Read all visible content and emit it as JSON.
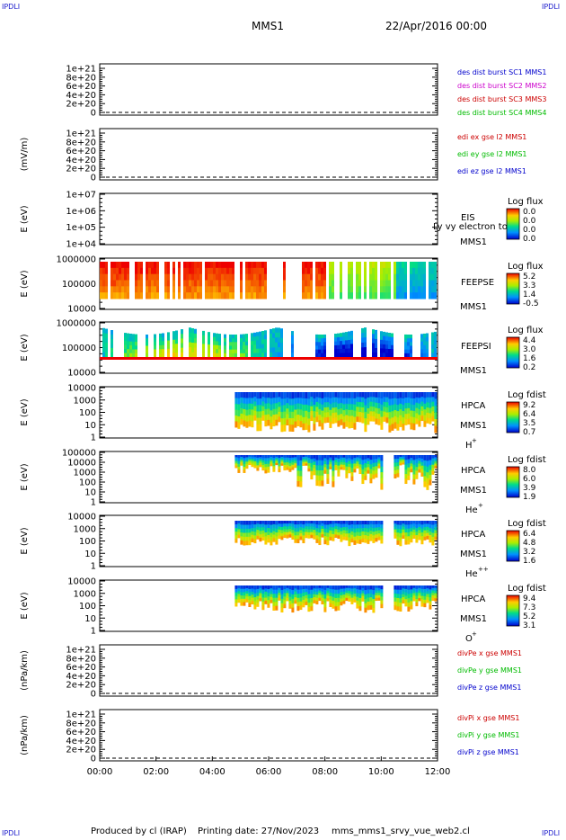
{
  "header": {
    "corner_left_top": "IPDLI",
    "corner_right_top": "IPDLI",
    "corner_left_bottom": "IPDLI",
    "corner_right_bottom": "IPDLI",
    "title": "MMS1",
    "date": "22/Apr/2016 00:00"
  },
  "footer": {
    "produced": "Produced by cl (IRAP)",
    "printing": "Printing date: 27/Nov/2023",
    "file": "mms_mms1_srvy_vue_web2.cl"
  },
  "colors": {
    "frame": "#000000",
    "red": "#cc0000",
    "magenta": "#cc00cc",
    "green": "#00bb00",
    "blue": "#0000cc",
    "corner": "#1a1acc"
  },
  "chart_data": {
    "type": "multi-panel time series (line and spectrogram)",
    "x_ticks": [
      "00:00",
      "02:00",
      "04:00",
      "06:00",
      "08:00",
      "10:00",
      "12:00"
    ],
    "x_range_hours": [
      0,
      12
    ],
    "panels": [
      {
        "type": "line",
        "ylabel": "",
        "yticks": [
          "1e+21",
          "8e+20",
          "6e+20",
          "4e+20",
          "2e+20",
          "0"
        ],
        "ylim": [
          0,
          1e+21
        ],
        "series": [
          {
            "name": "des dist burst SC1 MMS1",
            "color": "#0000cc"
          },
          {
            "name": "des dist burst SC2 MMS2",
            "color": "#cc00cc"
          },
          {
            "name": "des dist burst SC3 MMS3",
            "color": "#cc0000"
          },
          {
            "name": "des dist burst SC4 MMS4",
            "color": "#00bb00"
          }
        ],
        "zero_line": true
      },
      {
        "type": "line",
        "ylabel": "(mV/m)",
        "yticks": [
          "1e+21",
          "8e+20",
          "6e+20",
          "4e+20",
          "2e+20",
          "0"
        ],
        "ylim": [
          0,
          1e+21
        ],
        "series": [
          {
            "name": "edi ex gse l2 MMS1",
            "color": "#cc0000"
          },
          {
            "name": "edi ey gse l2 MMS1",
            "color": "#00bb00"
          },
          {
            "name": "edi ez gse l2 MMS1",
            "color": "#0000cc"
          }
        ],
        "zero_line": true
      },
      {
        "type": "spectrogram",
        "ylabel": "E (eV)",
        "yticks": [
          "1e+07",
          "1e+06",
          "1e+05",
          "1e+04"
        ],
        "instrument": [
          "EIS",
          "MMS1"
        ],
        "overlay_text": "Ly vy electron tof",
        "colorbar_title": "Log flux",
        "colorbar_values": [
          "0.0",
          "0.0",
          "0.0",
          "0.0"
        ],
        "data_extent_hours": [
          0,
          0
        ]
      },
      {
        "type": "spectrogram",
        "ylabel": "E (eV)",
        "yticks": [
          "1000000",
          "100000",
          "10000"
        ],
        "instrument": [
          "FEEPSE",
          "MMS1"
        ],
        "colorbar_title": "Log flux",
        "colorbar_values": [
          "5.2",
          "3.3",
          "1.4",
          "-0.5"
        ],
        "data_extent_hours": [
          0,
          12
        ]
      },
      {
        "type": "spectrogram",
        "ylabel": "E (eV)",
        "yticks": [
          "1000000",
          "100000",
          "10000"
        ],
        "instrument": [
          "FEEPSI",
          "MMS1"
        ],
        "colorbar_title": "Log flux",
        "colorbar_values": [
          "4.4",
          "3.0",
          "1.6",
          "0.2"
        ],
        "data_extent_hours": [
          0,
          12
        ]
      },
      {
        "type": "spectrogram",
        "ylabel": "E (eV)",
        "yticks": [
          "10000",
          "1000",
          "100",
          "10",
          "1"
        ],
        "instrument": [
          "HPCA",
          "MMS1",
          "H",
          "+"
        ],
        "colorbar_title": "Log fdist",
        "colorbar_values": [
          "9.2",
          "6.4",
          "3.5",
          "0.7"
        ],
        "data_extent_hours": [
          4.8,
          12
        ]
      },
      {
        "type": "spectrogram",
        "ylabel": "E (eV)",
        "yticks": [
          "100000",
          "10000",
          "1000",
          "100",
          "10",
          "1"
        ],
        "instrument": [
          "HPCA",
          "MMS1",
          "He",
          "+"
        ],
        "colorbar_title": "Log fdist",
        "colorbar_values": [
          "8.0",
          "6.0",
          "3.9",
          "1.9"
        ],
        "data_extent_hours": [
          4.8,
          12
        ]
      },
      {
        "type": "spectrogram",
        "ylabel": "E (eV)",
        "yticks": [
          "10000",
          "1000",
          "100",
          "10",
          "1"
        ],
        "instrument": [
          "HPCA",
          "MMS1",
          "He",
          "++"
        ],
        "colorbar_title": "Log fdist",
        "colorbar_values": [
          "6.4",
          "4.8",
          "3.2",
          "1.6"
        ],
        "data_extent_hours": [
          4.8,
          12
        ]
      },
      {
        "type": "spectrogram",
        "ylabel": "E (eV)",
        "yticks": [
          "10000",
          "1000",
          "100",
          "10",
          "1"
        ],
        "instrument": [
          "HPCA",
          "MMS1",
          "O",
          "+"
        ],
        "colorbar_title": "Log fdist",
        "colorbar_values": [
          "9.4",
          "7.3",
          "5.2",
          "3.1"
        ],
        "data_extent_hours": [
          4.8,
          12
        ]
      },
      {
        "type": "line",
        "ylabel": "(nPa/km)",
        "yticks": [
          "1e+21",
          "8e+20",
          "6e+20",
          "4e+20",
          "2e+20",
          "0"
        ],
        "ylim": [
          0,
          1e+21
        ],
        "series": [
          {
            "name": "divPe x gse MMS1",
            "color": "#cc0000"
          },
          {
            "name": "divPe y gse MMS1",
            "color": "#00bb00"
          },
          {
            "name": "divPe z gse MMS1",
            "color": "#0000cc"
          }
        ],
        "zero_line": true
      },
      {
        "type": "line",
        "ylabel": "(nPa/km)",
        "yticks": [
          "1e+21",
          "8e+20",
          "6e+20",
          "4e+20",
          "2e+20",
          "0"
        ],
        "ylim": [
          0,
          1e+21
        ],
        "series": [
          {
            "name": "divPi x gse MMS1",
            "color": "#cc0000"
          },
          {
            "name": "divPi y gse MMS1",
            "color": "#00bb00"
          },
          {
            "name": "divPi z gse MMS1",
            "color": "#0000cc"
          }
        ],
        "zero_line": true
      }
    ]
  }
}
